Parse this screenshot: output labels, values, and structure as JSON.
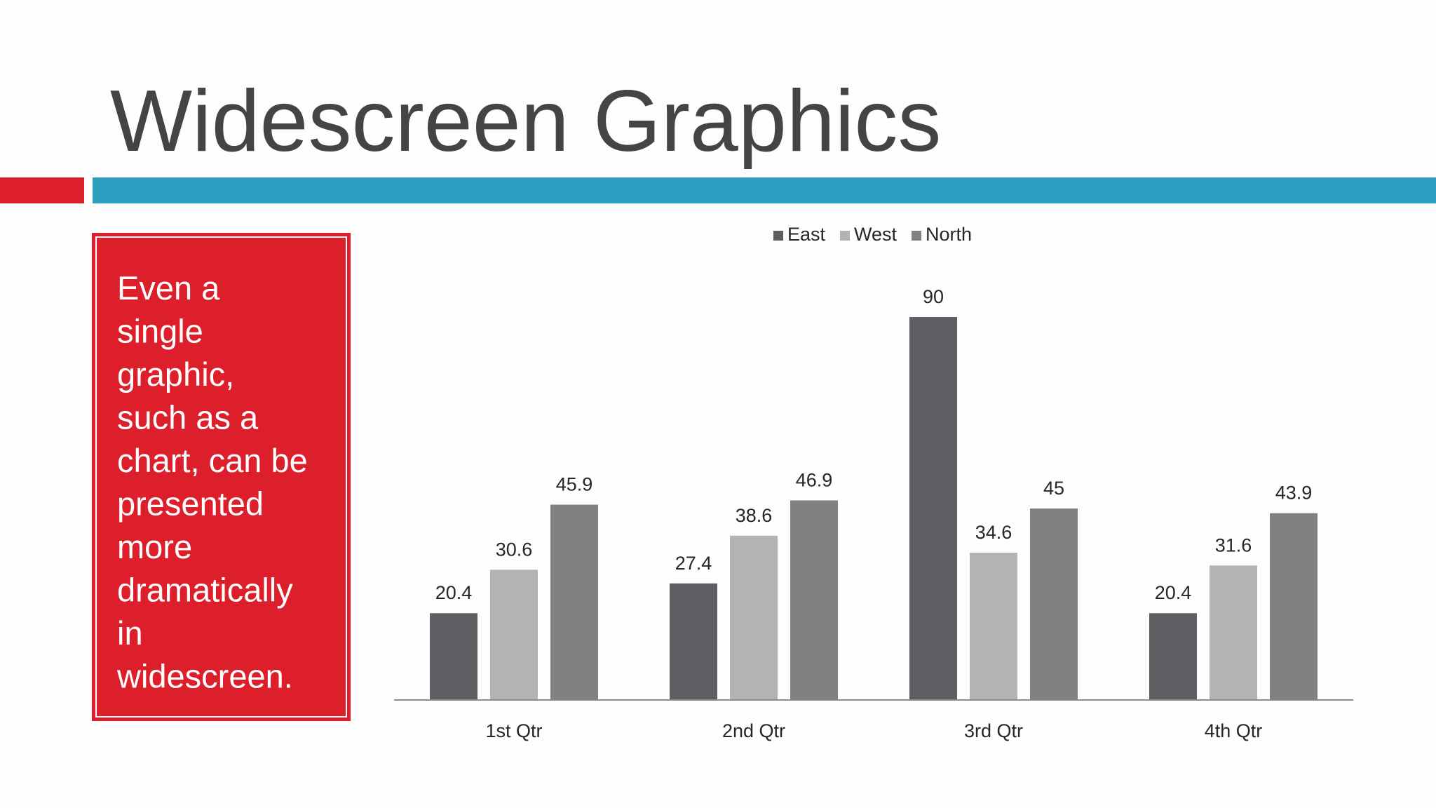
{
  "title": "Widescreen Graphics",
  "callout": {
    "lines": [
      "Even a",
      "single",
      "graphic,",
      "such as a",
      "chart, can be",
      "presented",
      "more",
      "dramatically",
      "in",
      "widescreen."
    ]
  },
  "chart_data": {
    "type": "bar",
    "categories": [
      "1st Qtr",
      "2nd Qtr",
      "3rd Qtr",
      "4th Qtr"
    ],
    "series": [
      {
        "name": "East",
        "color": "#605e62",
        "values": [
          20.4,
          27.4,
          90,
          20.4
        ]
      },
      {
        "name": "West",
        "color": "#b3b2b4",
        "values": [
          30.6,
          38.6,
          34.6,
          31.6
        ]
      },
      {
        "name": "North",
        "color": "#818083",
        "values": [
          45.9,
          46.9,
          45,
          43.9
        ]
      }
    ],
    "legend": "top"
  }
}
